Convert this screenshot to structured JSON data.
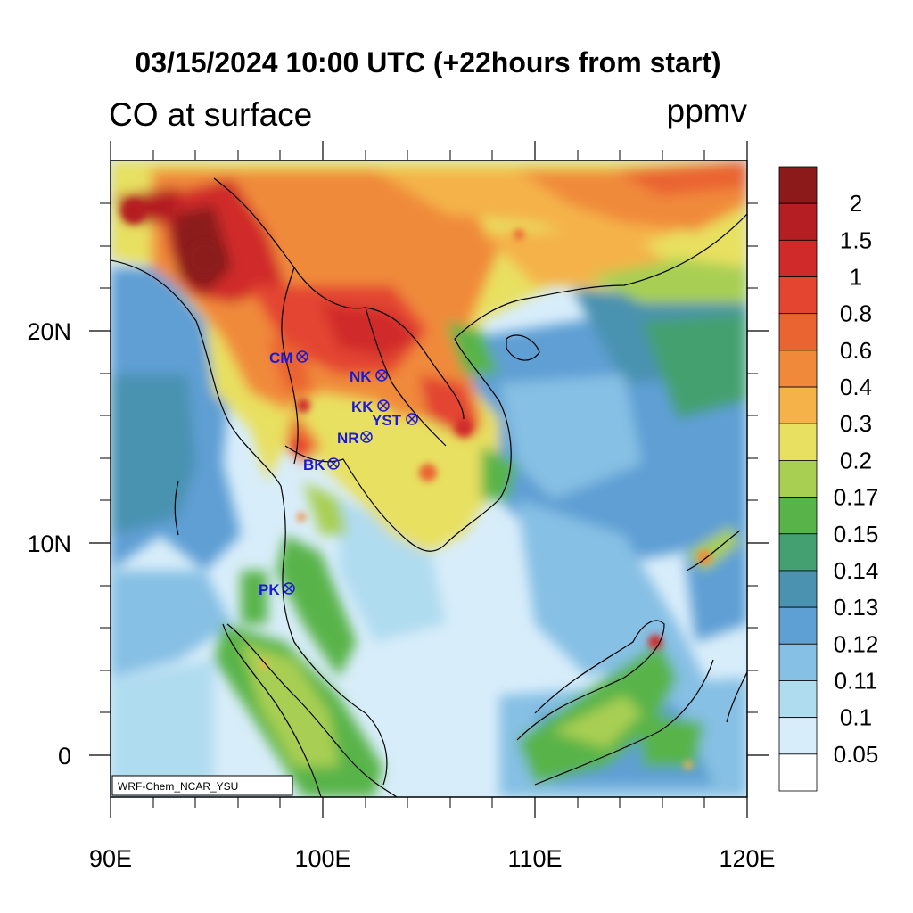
{
  "title": "03/15/2024 10:00 UTC (+22hours from start)",
  "subtitle": "CO at surface",
  "units": "ppmv",
  "credit": "WRF-Chem_NCAR_YSU",
  "axes": {
    "x_ticks": [
      "90E",
      "100E",
      "110E",
      "120E"
    ],
    "y_ticks": [
      "20N",
      "10N",
      "0"
    ]
  },
  "colorbar": {
    "levels": [
      "2",
      "1.5",
      "1",
      "0.8",
      "0.6",
      "0.4",
      "0.3",
      "0.2",
      "0.17",
      "0.15",
      "0.14",
      "0.13",
      "0.12",
      "0.11",
      "0.1",
      "0.05"
    ],
    "colors": [
      "#8c1a1a",
      "#b51e22",
      "#d02a2a",
      "#e34530",
      "#ea6432",
      "#f08a3a",
      "#f4b248",
      "#e8e060",
      "#a8cf52",
      "#58b448",
      "#44a070",
      "#4a92b0",
      "#5e9fd4",
      "#86c0e4",
      "#b0dcf0",
      "#d8edfa",
      "#ffffff"
    ]
  },
  "sites": [
    {
      "code": "CM"
    },
    {
      "code": "NK"
    },
    {
      "code": "KK"
    },
    {
      "code": "YST"
    },
    {
      "code": "NR"
    },
    {
      "code": "BK"
    },
    {
      "code": "PK"
    }
  ]
}
